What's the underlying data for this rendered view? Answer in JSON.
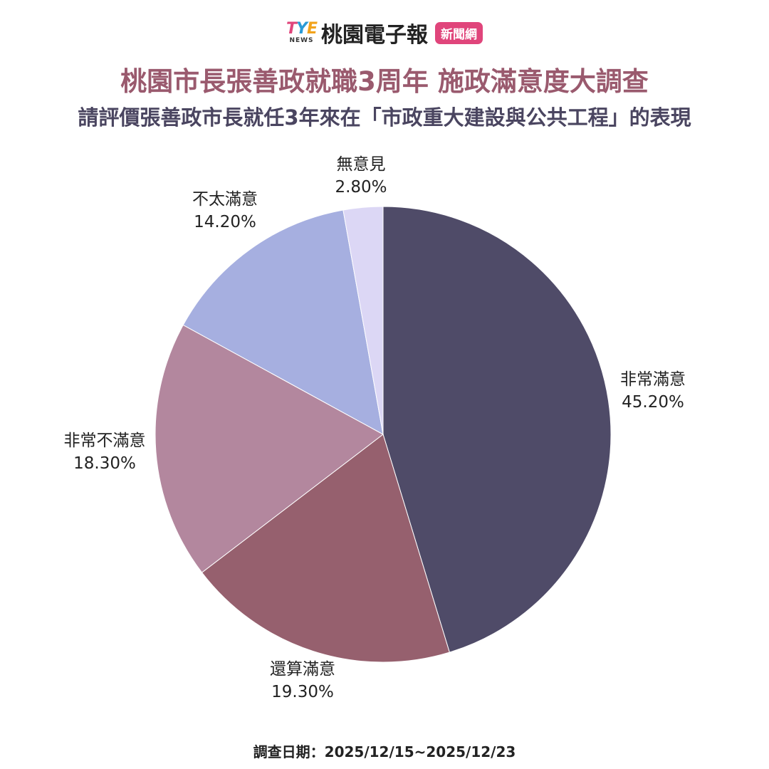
{
  "brand": {
    "logo_text": "TYE",
    "logo_sub": "NEWS",
    "name": "桃園電子報",
    "badge": "新聞網"
  },
  "title": "桃園市長張善政就職3周年  施政滿意度大調查",
  "subtitle": "請評價張善政市長就任3年來在「市政重大建設與公共工程」的表現",
  "footer": "調查日期：2025/12/15~2025/12/23",
  "chart_data": {
    "type": "pie",
    "start": "top",
    "direction": "clockwise",
    "slices": [
      {
        "label": "非常滿意",
        "value": 45.2,
        "display": "45.20%",
        "color": "#4f4b68"
      },
      {
        "label": "還算滿意",
        "value": 19.3,
        "display": "19.30%",
        "color": "#96606e"
      },
      {
        "label": "非常不滿意",
        "value": 18.3,
        "display": "18.30%",
        "color": "#b3879e"
      },
      {
        "label": "不太滿意",
        "value": 14.2,
        "display": "14.20%",
        "color": "#a6afe0"
      },
      {
        "label": "無意見",
        "value": 2.8,
        "display": "2.80%",
        "color": "#dcd7f5"
      }
    ]
  }
}
